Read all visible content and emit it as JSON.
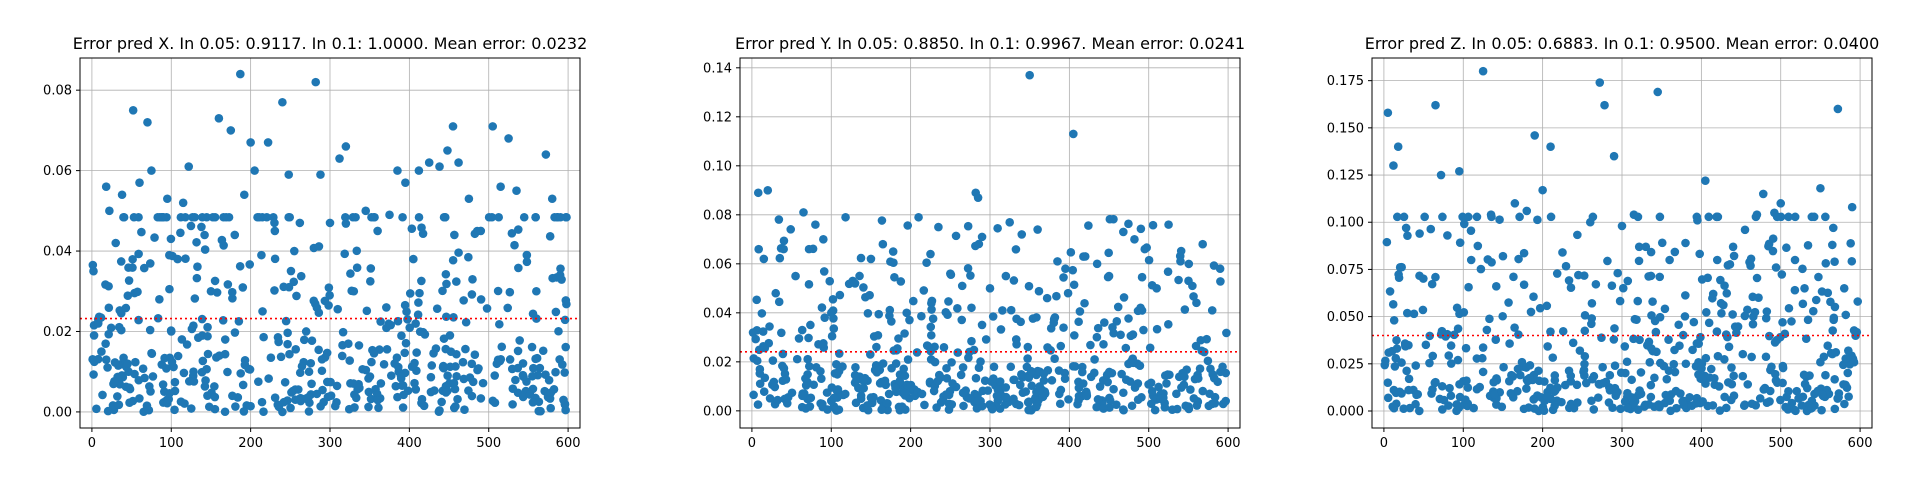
{
  "charts": [
    {
      "title": "Error pred X. In 0.05: 0.9117. In 0.1: 1.0000. Mean error: 0.0232"
    },
    {
      "title": "Error pred Y. In 0.05: 0.8850. In 0.1: 0.9967. Mean error: 0.0241"
    },
    {
      "title": "Error pred Z. In 0.05: 0.6883. In 0.1: 0.9500. Mean error: 0.0400"
    }
  ],
  "chart_data": [
    {
      "type": "scatter",
      "title": "Error pred X. In 0.05: 0.9117. In 0.1: 1.0000. Mean error: 0.0232",
      "xlabel": "",
      "ylabel": "",
      "xlim": [
        -15,
        615
      ],
      "ylim": [
        -0.004,
        0.088
      ],
      "xticks": [
        0,
        100,
        200,
        300,
        400,
        500,
        600
      ],
      "yticks": [
        0.0,
        0.02,
        0.04,
        0.06,
        0.08
      ],
      "ytick_labels": [
        "0.00",
        "0.02",
        "0.04",
        "0.06",
        "0.08"
      ],
      "grid": true,
      "marker_color": "#1f77b4",
      "mean_line": {
        "y": 0.0232,
        "color": "#ff0000",
        "style": "dotted"
      },
      "n_points": 600,
      "points": [
        [
          2,
          0.035
        ],
        [
          8,
          0.022
        ],
        [
          12,
          0.015
        ],
        [
          18,
          0.056
        ],
        [
          22,
          0.05
        ],
        [
          30,
          0.042
        ],
        [
          38,
          0.054
        ],
        [
          45,
          0.012
        ],
        [
          52,
          0.075
        ],
        [
          60,
          0.057
        ],
        [
          70,
          0.072
        ],
        [
          75,
          0.06
        ],
        [
          85,
          0.028
        ],
        [
          95,
          0.053
        ],
        [
          100,
          0.02
        ],
        [
          108,
          0.038
        ],
        [
          115,
          0.052
        ],
        [
          122,
          0.061
        ],
        [
          128,
          0.01
        ],
        [
          138,
          0.046
        ],
        [
          150,
          0.03
        ],
        [
          160,
          0.073
        ],
        [
          168,
          0.018
        ],
        [
          175,
          0.07
        ],
        [
          180,
          0.044
        ],
        [
          187,
          0.084
        ],
        [
          192,
          0.054
        ],
        [
          200,
          0.067
        ],
        [
          205,
          0.06
        ],
        [
          215,
          0.025
        ],
        [
          222,
          0.067
        ],
        [
          230,
          0.047
        ],
        [
          240,
          0.077
        ],
        [
          248,
          0.059
        ],
        [
          255,
          0.04
        ],
        [
          262,
          0.047
        ],
        [
          270,
          0.02
        ],
        [
          282,
          0.082
        ],
        [
          288,
          0.059
        ],
        [
          300,
          0.047
        ],
        [
          312,
          0.063
        ],
        [
          320,
          0.066
        ],
        [
          330,
          0.03
        ],
        [
          345,
          0.05
        ],
        [
          360,
          0.045
        ],
        [
          375,
          0.049
        ],
        [
          385,
          0.06
        ],
        [
          395,
          0.057
        ],
        [
          405,
          0.038
        ],
        [
          412,
          0.06
        ],
        [
          425,
          0.062
        ],
        [
          438,
          0.061
        ],
        [
          448,
          0.065
        ],
        [
          455,
          0.071
        ],
        [
          462,
          0.062
        ],
        [
          475,
          0.053
        ],
        [
          490,
          0.045
        ],
        [
          505,
          0.071
        ],
        [
          515,
          0.056
        ],
        [
          525,
          0.068
        ],
        [
          535,
          0.055
        ],
        [
          548,
          0.039
        ],
        [
          560,
          0.03
        ],
        [
          572,
          0.064
        ],
        [
          580,
          0.053
        ],
        [
          590,
          0.034
        ],
        [
          596,
          0.002
        ]
      ]
    },
    {
      "type": "scatter",
      "title": "Error pred Y. In 0.05: 0.8850. In 0.1: 0.9967. Mean error: 0.0241",
      "xlabel": "",
      "ylabel": "",
      "xlim": [
        -15,
        615
      ],
      "ylim": [
        -0.007,
        0.144
      ],
      "xticks": [
        0,
        100,
        200,
        300,
        400,
        500,
        600
      ],
      "yticks": [
        0.0,
        0.02,
        0.04,
        0.06,
        0.08,
        0.1,
        0.12,
        0.14
      ],
      "ytick_labels": [
        "0.00",
        "0.02",
        "0.04",
        "0.06",
        "0.08",
        "0.10",
        "0.12",
        "0.14"
      ],
      "grid": true,
      "marker_color": "#1f77b4",
      "mean_line": {
        "y": 0.0241,
        "color": "#ff0000",
        "style": "dotted"
      },
      "n_points": 600,
      "points": [
        [
          8,
          0.089
        ],
        [
          15,
          0.062
        ],
        [
          20,
          0.09
        ],
        [
          30,
          0.048
        ],
        [
          40,
          0.066
        ],
        [
          55,
          0.055
        ],
        [
          65,
          0.081
        ],
        [
          72,
          0.066
        ],
        [
          80,
          0.076
        ],
        [
          90,
          0.07
        ],
        [
          100,
          0.04
        ],
        [
          118,
          0.079
        ],
        [
          130,
          0.052
        ],
        [
          150,
          0.062
        ],
        [
          165,
          0.068
        ],
        [
          178,
          0.065
        ],
        [
          195,
          0.04
        ],
        [
          210,
          0.079
        ],
        [
          225,
          0.064
        ],
        [
          235,
          0.075
        ],
        [
          250,
          0.056
        ],
        [
          265,
          0.051
        ],
        [
          282,
          0.089
        ],
        [
          285,
          0.087
        ],
        [
          290,
          0.071
        ],
        [
          300,
          0.05
        ],
        [
          320,
          0.055
        ],
        [
          340,
          0.072
        ],
        [
          350,
          0.137
        ],
        [
          360,
          0.074
        ],
        [
          372,
          0.046
        ],
        [
          385,
          0.061
        ],
        [
          395,
          0.058
        ],
        [
          405,
          0.113
        ],
        [
          420,
          0.063
        ],
        [
          435,
          0.06
        ],
        [
          450,
          0.055
        ],
        [
          468,
          0.073
        ],
        [
          482,
          0.07
        ],
        [
          495,
          0.066
        ],
        [
          510,
          0.05
        ],
        [
          525,
          0.076
        ],
        [
          540,
          0.061
        ],
        [
          555,
          0.051
        ],
        [
          568,
          0.068
        ],
        [
          580,
          0.041
        ],
        [
          590,
          0.058
        ],
        [
          597,
          0.004
        ]
      ]
    },
    {
      "type": "scatter",
      "title": "Error pred Z. In 0.05: 0.6883. In 0.1: 0.9500. Mean error: 0.0400",
      "xlabel": "",
      "ylabel": "",
      "xlim": [
        -15,
        615
      ],
      "ylim": [
        -0.009,
        0.187
      ],
      "xticks": [
        0,
        100,
        200,
        300,
        400,
        500,
        600
      ],
      "yticks": [
        0.0,
        0.025,
        0.05,
        0.075,
        0.1,
        0.125,
        0.15,
        0.175
      ],
      "ytick_labels": [
        "0.000",
        "0.025",
        "0.050",
        "0.075",
        "0.100",
        "0.125",
        "0.150",
        "0.175"
      ],
      "grid": true,
      "marker_color": "#1f77b4",
      "mean_line": {
        "y": 0.04,
        "color": "#ff0000",
        "style": "dotted"
      },
      "n_points": 600,
      "points": [
        [
          5,
          0.158
        ],
        [
          12,
          0.13
        ],
        [
          18,
          0.14
        ],
        [
          28,
          0.097
        ],
        [
          45,
          0.094
        ],
        [
          65,
          0.162
        ],
        [
          72,
          0.125
        ],
        [
          80,
          0.093
        ],
        [
          95,
          0.127
        ],
        [
          110,
          0.08
        ],
        [
          125,
          0.18
        ],
        [
          135,
          0.104
        ],
        [
          150,
          0.082
        ],
        [
          165,
          0.11
        ],
        [
          180,
          0.106
        ],
        [
          190,
          0.146
        ],
        [
          200,
          0.117
        ],
        [
          210,
          0.14
        ],
        [
          225,
          0.084
        ],
        [
          245,
          0.072
        ],
        [
          260,
          0.1
        ],
        [
          272,
          0.174
        ],
        [
          278,
          0.162
        ],
        [
          290,
          0.135
        ],
        [
          300,
          0.098
        ],
        [
          315,
          0.104
        ],
        [
          330,
          0.087
        ],
        [
          345,
          0.169
        ],
        [
          360,
          0.08
        ],
        [
          380,
          0.089
        ],
        [
          395,
          0.101
        ],
        [
          405,
          0.122
        ],
        [
          420,
          0.08
        ],
        [
          440,
          0.087
        ],
        [
          455,
          0.096
        ],
        [
          470,
          0.104
        ],
        [
          478,
          0.115
        ],
        [
          492,
          0.105
        ],
        [
          500,
          0.11
        ],
        [
          518,
          0.08
        ],
        [
          530,
          0.065
        ],
        [
          550,
          0.118
        ],
        [
          565,
          0.088
        ],
        [
          572,
          0.16
        ],
        [
          580,
          0.065
        ],
        [
          590,
          0.108
        ],
        [
          597,
          0.058
        ]
      ]
    }
  ]
}
